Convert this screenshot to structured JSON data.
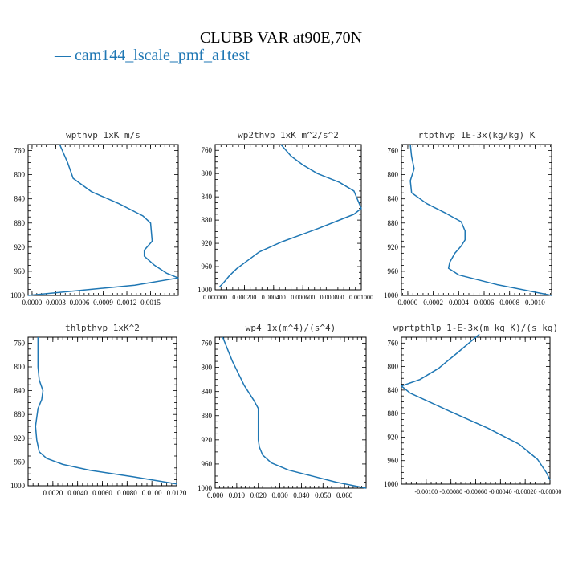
{
  "figure": {
    "title": "CLUBB VAR at90E,70N",
    "legend": [
      {
        "label": "— cam144_lscale_pmf_a1test",
        "color": "#1f77b4"
      }
    ]
  },
  "chart_data": [
    {
      "type": "line",
      "title": "wpthvp  1xK m/s",
      "y_ticks": [
        760,
        800,
        840,
        880,
        920,
        960,
        1000
      ],
      "ylim": [
        1000,
        750
      ],
      "xlim": [
        -5e-05,
        0.00185
      ],
      "x_ticks": [
        0,
        0.0003,
        0.0006,
        0.0009,
        0.0012,
        0.0015
      ],
      "x_tick_labels": [
        "0.0000",
        "0.0003",
        "0.0006",
        "0.0009",
        "0.0012",
        "0.0015"
      ],
      "series": [
        {
          "color": "#1f77b4",
          "x": [
            0.00035,
            0.00045,
            0.00052,
            0.00075,
            0.0011,
            0.0014,
            0.0015,
            0.00152,
            0.00142,
            0.00142,
            0.00155,
            0.0017,
            0.00185,
            0.0013,
            -5e-05
          ],
          "y": [
            750,
            780,
            806,
            828,
            848,
            868,
            880,
            910,
            925,
            935,
            950,
            963,
            971,
            983,
            1000
          ]
        }
      ]
    },
    {
      "type": "line",
      "title": "wp2thvp  1xK m^2/s^2",
      "y_ticks": [
        760,
        800,
        840,
        880,
        920,
        960,
        1000
      ],
      "ylim": [
        1000,
        750
      ],
      "xlim": [
        0,
        0.001
      ],
      "x_ticks": [
        0,
        0.0002,
        0.0004,
        0.0006,
        0.0008,
        0.001
      ],
      "x_tick_labels": [
        "0.000000",
        "0.000200",
        "0.000400",
        "0.000600",
        "0.000800",
        "0.001000"
      ],
      "series": [
        {
          "color": "#1f77b4",
          "x": [
            0.00045,
            0.00052,
            0.0006,
            0.0007,
            0.00085,
            0.00095,
            0.001,
            0.00095,
            0.00085,
            0.0007,
            0.00045,
            0.0003,
            0.00022,
            0.00015,
            0.0001,
            6e-05,
            3e-05
          ],
          "y": [
            750,
            770,
            785,
            800,
            815,
            830,
            860,
            870,
            880,
            895,
            918,
            935,
            950,
            963,
            975,
            987,
            995
          ]
        }
      ]
    },
    {
      "type": "line",
      "title": "rtpthvp  1E-3x(kg/kg) K",
      "y_ticks": [
        760,
        800,
        840,
        880,
        920,
        960,
        1000
      ],
      "ylim": [
        1000,
        750
      ],
      "xlim": [
        -5e-05,
        0.00113
      ],
      "x_ticks": [
        0,
        0.0002,
        0.0004,
        0.0006,
        0.0008,
        0.001
      ],
      "x_tick_labels": [
        "0.0000",
        "0.0002",
        "0.0004",
        "0.0006",
        "0.0008",
        "0.0010"
      ],
      "series": [
        {
          "color": "#1f77b4",
          "x": [
            2e-05,
            3e-05,
            5e-05,
            2e-05,
            3e-05,
            0.00015,
            0.0003,
            0.00042,
            0.00045,
            0.00045,
            0.00042,
            0.00037,
            0.00033,
            0.00032,
            0.0004,
            0.0007,
            0.00113
          ],
          "y": [
            750,
            770,
            790,
            810,
            830,
            848,
            864,
            878,
            893,
            908,
            918,
            930,
            945,
            955,
            966,
            982,
            1000
          ]
        }
      ]
    },
    {
      "type": "line",
      "title": "thlpthvp  1xK^2",
      "y_ticks": [
        760,
        800,
        840,
        880,
        920,
        960,
        1000
      ],
      "ylim": [
        1000,
        750
      ],
      "xlim": [
        0,
        0.012
      ],
      "x_ticks": [
        0.002,
        0.004,
        0.006,
        0.008,
        0.01,
        0.012
      ],
      "x_tick_labels": [
        "0.0020",
        "0.0040",
        "0.0060",
        "0.0080",
        "0.0100",
        "0.0120"
      ],
      "series": [
        {
          "color": "#1f77b4",
          "x": [
            0.0008,
            0.0008,
            0.0009,
            0.0012,
            0.0011,
            0.0008,
            0.0006,
            0.0007,
            0.0009,
            0.0015,
            0.0028,
            0.005,
            0.0085,
            0.012
          ],
          "y": [
            750,
            800,
            822,
            840,
            855,
            870,
            900,
            923,
            943,
            954,
            964,
            974,
            985,
            997
          ]
        }
      ]
    },
    {
      "type": "line",
      "title": "wp4  1x(m^4)/(s^4)",
      "y_ticks": [
        760,
        800,
        840,
        880,
        920,
        960,
        1000
      ],
      "ylim": [
        1000,
        750
      ],
      "xlim": [
        0,
        0.07
      ],
      "x_ticks": [
        0,
        0.01,
        0.02,
        0.03,
        0.04,
        0.05,
        0.06
      ],
      "x_tick_labels": [
        "0.000",
        "0.010",
        "0.020",
        "0.030",
        "0.040",
        "0.050",
        "0.060"
      ],
      "series": [
        {
          "color": "#1f77b4",
          "x": [
            0.0035,
            0.008,
            0.0135,
            0.018,
            0.02,
            0.02,
            0.02,
            0.0205,
            0.022,
            0.026,
            0.034,
            0.045,
            0.056,
            0.07
          ],
          "y": [
            750,
            790,
            830,
            855,
            868,
            890,
            920,
            932,
            945,
            958,
            970,
            980,
            990,
            1000
          ]
        }
      ]
    },
    {
      "type": "line",
      "title": "wprtpthlp  1-E-3x(m kg K)/(s kg)",
      "y_ticks": [
        760,
        800,
        840,
        880,
        920,
        960,
        1000
      ],
      "ylim": [
        1000,
        750
      ],
      "xlim": [
        -0.0012,
        0
      ],
      "x_ticks": [
        -0.001,
        -0.0008,
        -0.0006,
        -0.0004,
        -0.0002,
        0
      ],
      "x_tick_labels": [
        "-0.00100",
        "-0.00080",
        "-0.00060",
        "-0.00040",
        "-0.00020",
        "-0.00000"
      ],
      "series": [
        {
          "color": "#1f77b4",
          "x": [
            -0.00057,
            -0.00075,
            -0.0009,
            -0.00105,
            -0.0012,
            -0.00113,
            -0.0008,
            -0.0005,
            -0.00025,
            -0.0001,
            -3e-05,
            0
          ],
          "y": [
            745,
            777,
            803,
            822,
            833,
            845,
            877,
            905,
            932,
            958,
            980,
            993
          ]
        }
      ]
    }
  ]
}
